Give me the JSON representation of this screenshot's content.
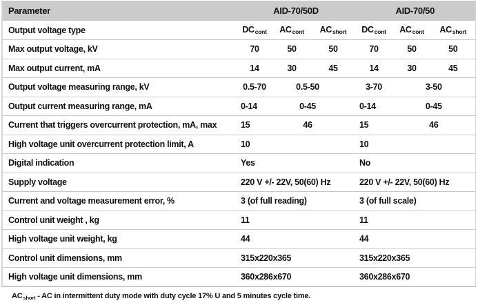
{
  "colors": {
    "header_bg": "#cbcbcb",
    "row_border": "#c9c9c9",
    "text": "#111111"
  },
  "header": {
    "parameter": "Parameter",
    "model_left": "AID-70/50D",
    "model_right": "AID-70/50"
  },
  "voltage_type": {
    "label": "Output voltage type",
    "cols": [
      {
        "main": "DC",
        "sub": "cont"
      },
      {
        "main": "AC",
        "sub": "cont"
      },
      {
        "main": "AC",
        "sub": "short"
      },
      {
        "main": "DC",
        "sub": "cont"
      },
      {
        "main": "AC",
        "sub": "cont"
      },
      {
        "main": "AC",
        "sub": "short"
      }
    ]
  },
  "rows": [
    {
      "label": "Max output voltage, kV",
      "cells": [
        "70",
        "50",
        "50",
        "70",
        "50",
        "50"
      ]
    },
    {
      "label": "Max output current, mA",
      "cells": [
        "14",
        "30",
        "45",
        "14",
        "30",
        "45"
      ]
    },
    {
      "label": "Output voltage measuring range, kV",
      "cells": [
        "0.5-70",
        "0.5-50",
        "3-70",
        "3-50"
      ]
    },
    {
      "label": "Output current measuring range, mA",
      "cells": [
        "0-14",
        "0-45",
        "0-14",
        "0-45"
      ]
    },
    {
      "label": "Current that triggers overcurrent protection, mA, max",
      "cells": [
        "15",
        "46",
        "15",
        "46"
      ]
    },
    {
      "label": "High voltage unit overcurrent protection limit, A",
      "cells": [
        "10",
        "10"
      ]
    },
    {
      "label": "Digital indication",
      "cells": [
        "Yes",
        "No"
      ]
    },
    {
      "label": "Supply voltage",
      "cells": [
        "220 V +/- 22V, 50(60) Hz",
        "220 V +/- 22V, 50(60) Hz"
      ]
    },
    {
      "label": "Current and voltage measurement error, %",
      "cells": [
        "3 (of full reading)",
        "3 (of full scale)"
      ]
    },
    {
      "label": "Control unit weight , kg",
      "cells": [
        "11",
        "11"
      ]
    },
    {
      "label": "High voltage unit weight, kg",
      "cells": [
        "44",
        "44"
      ]
    },
    {
      "label": "Control unit dimensions, mm",
      "cells": [
        "315x220x365",
        "315x220x365"
      ]
    },
    {
      "label": "High voltage unit dimensions, mm",
      "cells": [
        "360x286x670",
        "360x286x670"
      ]
    }
  ],
  "footnote": {
    "term_main": "AC",
    "term_sub": "short",
    "text": "- AC in intermittent duty mode with duty cycle 17% U and 5 minutes cycle time."
  }
}
